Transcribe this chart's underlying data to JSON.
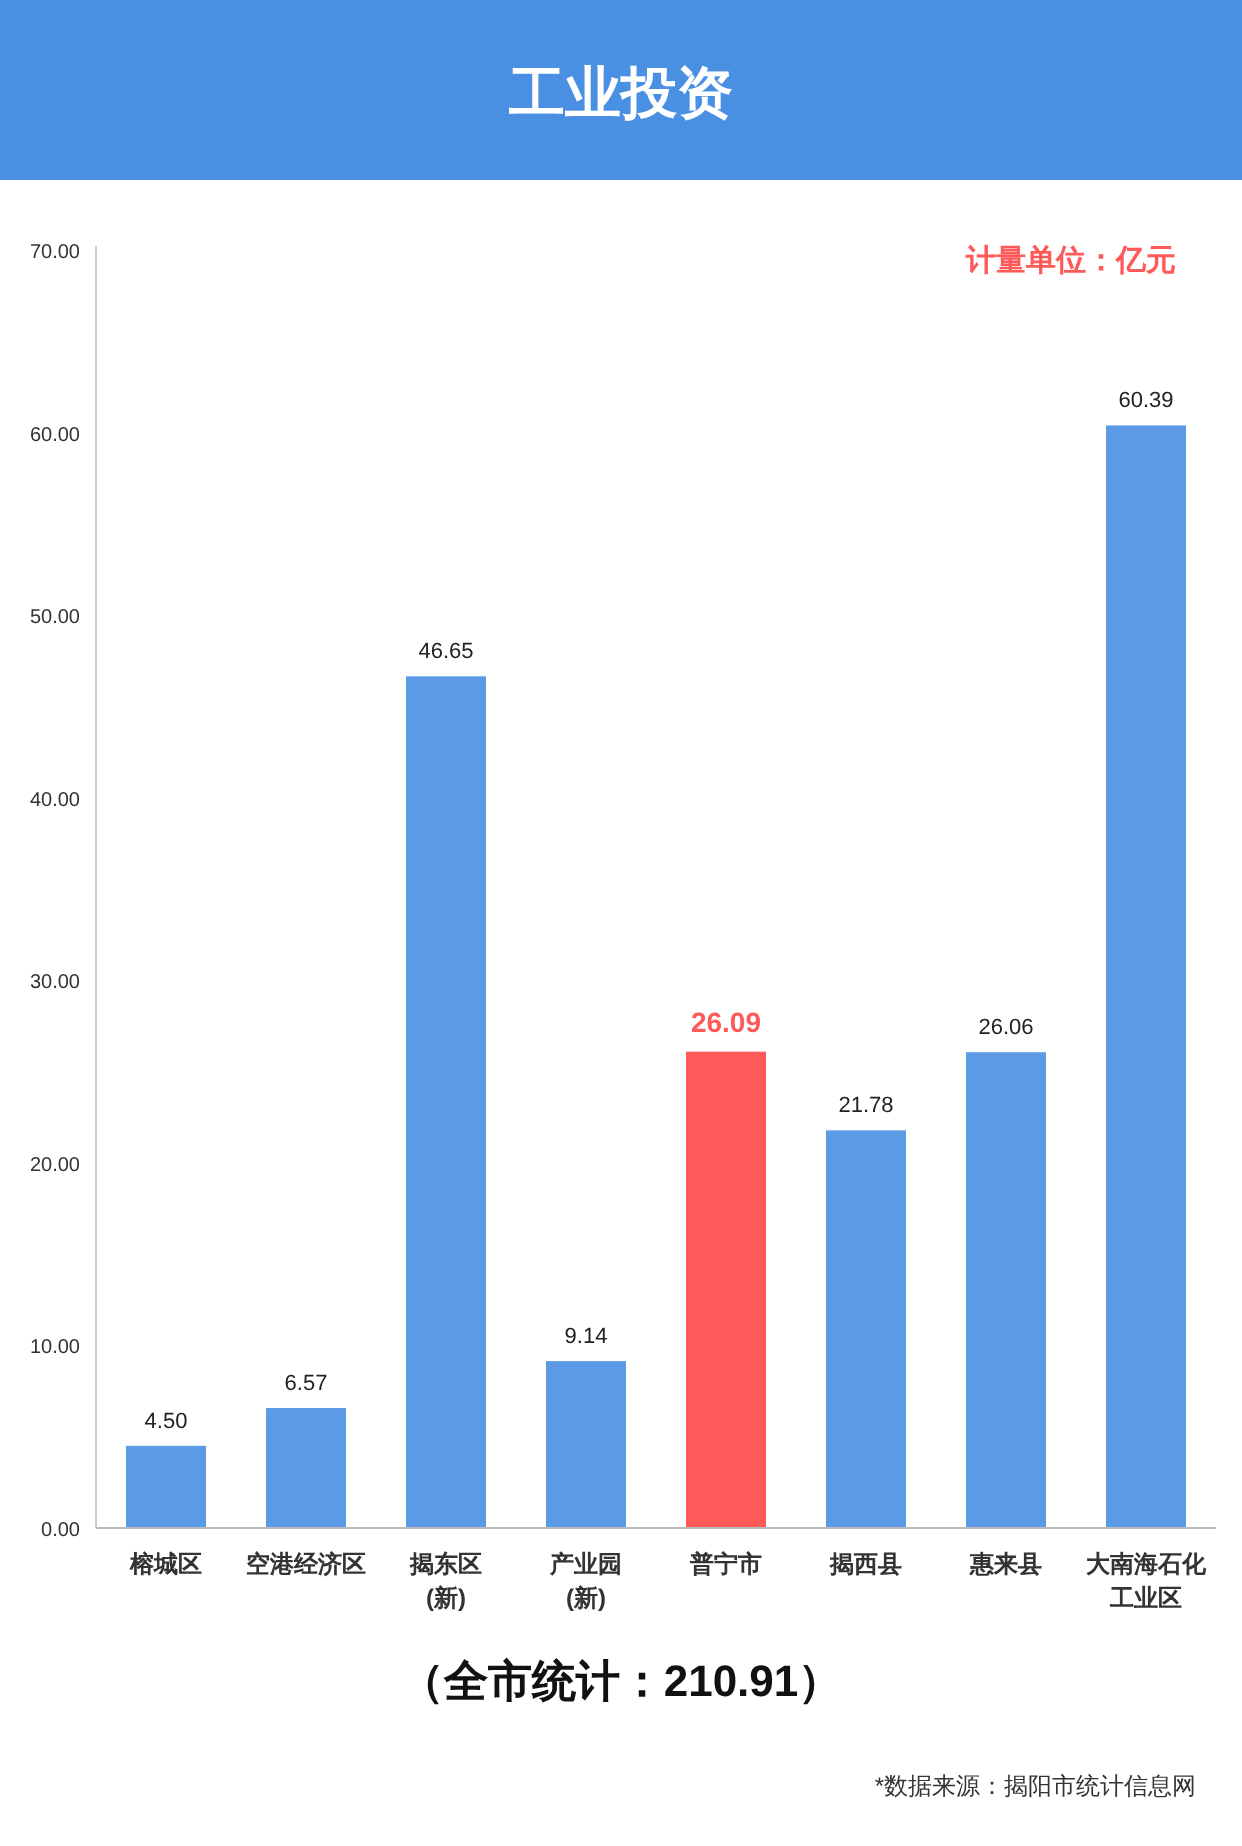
{
  "chart_data": {
    "type": "bar",
    "title": "工业投资",
    "categories": [
      "榕城区",
      "空港经济区",
      "揭东区(新)",
      "产业园(新)",
      "普宁市",
      "揭西县",
      "惠来县",
      "大南海石化工业区"
    ],
    "values": [
      4.5,
      6.57,
      46.65,
      9.14,
      26.09,
      21.78,
      26.06,
      60.39
    ],
    "value_labels": [
      "4.50",
      "6.57",
      "46.65",
      "9.14",
      "26.09",
      "21.78",
      "26.06",
      "60.39"
    ],
    "colors": [
      "#5b9be6",
      "#5b9be6",
      "#5b9be6",
      "#5b9be6",
      "#ff5a5a",
      "#5b9be6",
      "#5b9be6",
      "#5b9be6"
    ],
    "ylim": [
      0,
      70
    ],
    "yticks": [
      {
        "value": 0,
        "label": "0.00"
      },
      {
        "value": 10,
        "label": "10.00"
      },
      {
        "value": 20,
        "label": "20.00"
      },
      {
        "value": 30,
        "label": "30.00"
      },
      {
        "value": 40,
        "label": "40.00"
      },
      {
        "value": 50,
        "label": "50.00"
      },
      {
        "value": 60,
        "label": "60.00"
      },
      {
        "value": 70,
        "label": "70.00"
      }
    ],
    "grid": false,
    "annotations": [
      "计量单位：亿元",
      "（全市统计：210.91）",
      "*数据来源：揭阳市统计信息网"
    ]
  }
}
